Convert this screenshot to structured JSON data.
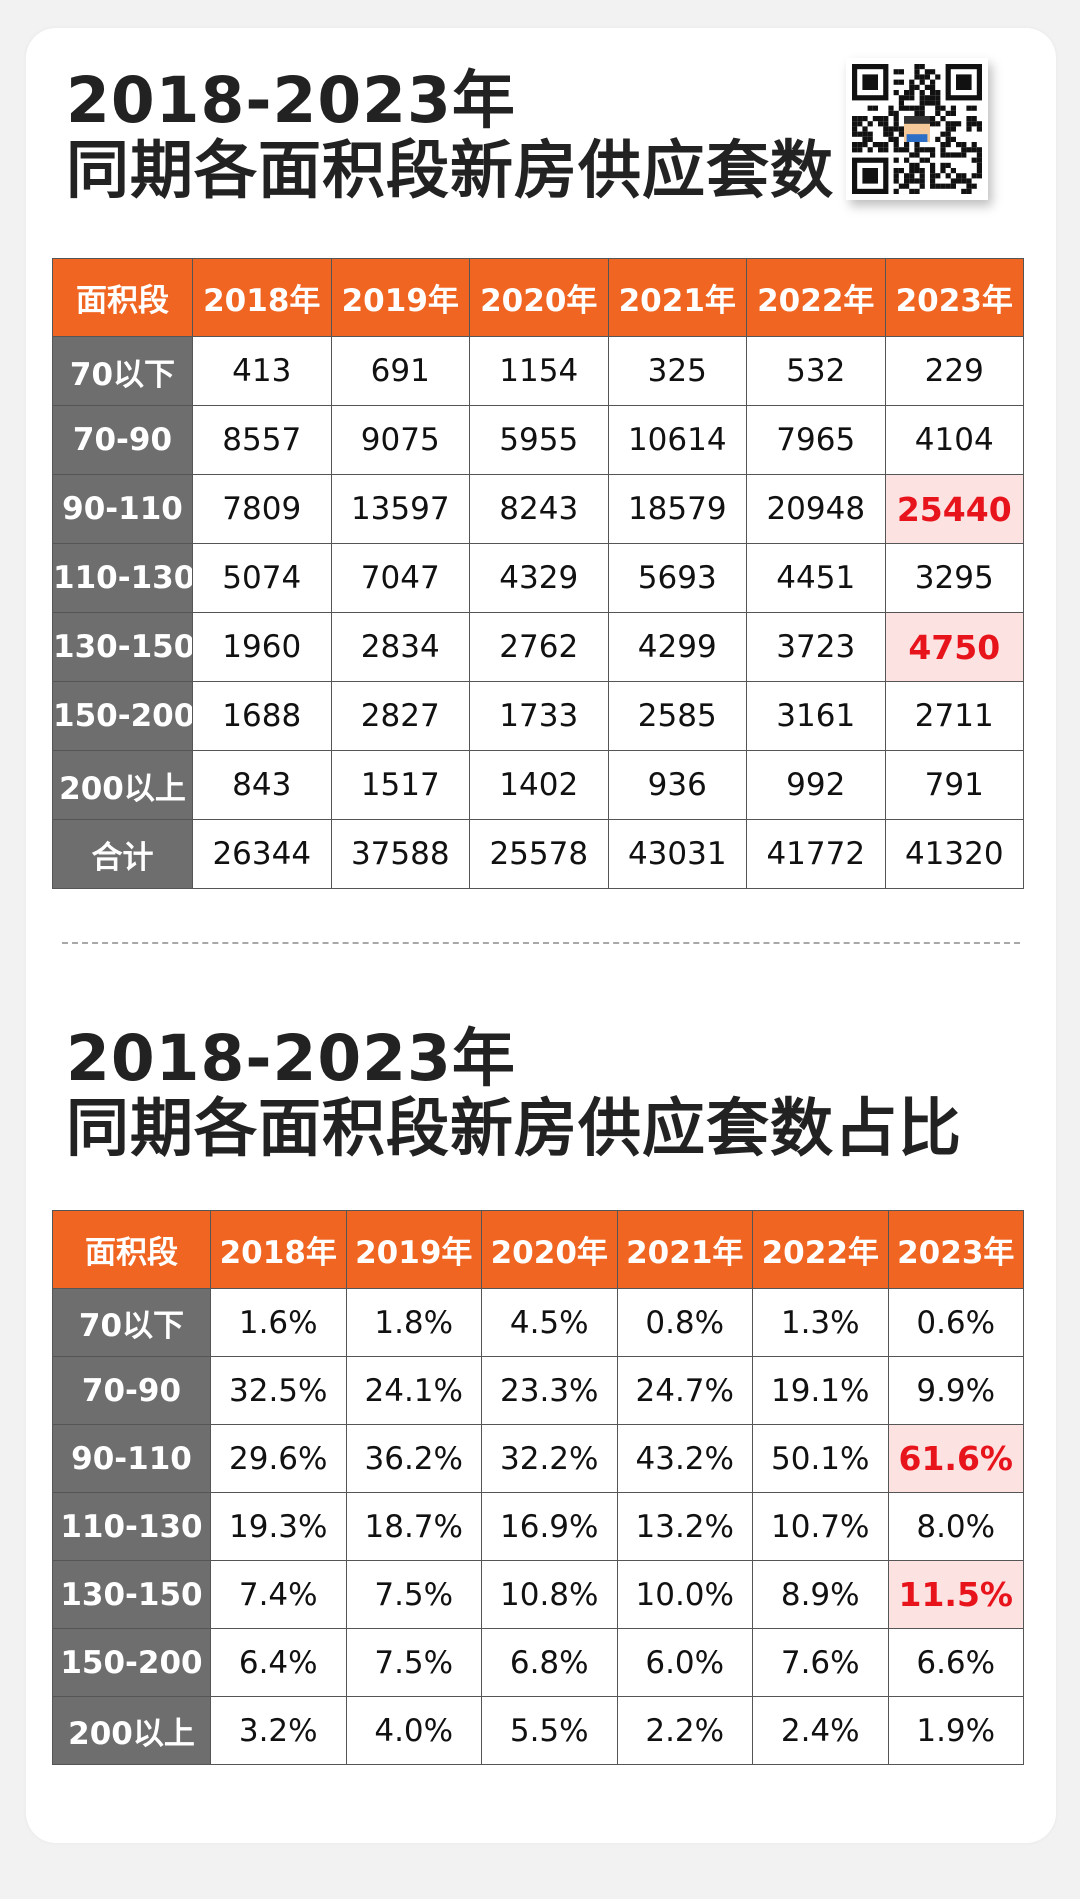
{
  "section1": {
    "title_line1": "2018-2023年",
    "title_line2": "同期各面积段新房供应套数"
  },
  "section2": {
    "title_line1": "2018-2023年",
    "title_line2": "同期各面积段新房供应套数占比"
  },
  "qr_code": {
    "icon": "qr-code-icon"
  },
  "colors": {
    "header_bg": "#f06522",
    "rowhead_bg": "#6e6e6e",
    "highlight_bg": "#fde2e2",
    "highlight_text": "#e8141c"
  },
  "chart_data": [
    {
      "type": "table",
      "title": "2018-2023年 同期各面积段新房供应套数",
      "columns": [
        "面积段",
        "2018年",
        "2019年",
        "2020年",
        "2021年",
        "2022年",
        "2023年"
      ],
      "rows": [
        {
          "label": "70以下",
          "values": [
            "413",
            "691",
            "1154",
            "325",
            "532",
            "229"
          ]
        },
        {
          "label": "70-90",
          "values": [
            "8557",
            "9075",
            "5955",
            "10614",
            "7965",
            "4104"
          ]
        },
        {
          "label": "90-110",
          "values": [
            "7809",
            "13597",
            "8243",
            "18579",
            "20948",
            "25440"
          ],
          "highlight": [
            5
          ]
        },
        {
          "label": "110-130",
          "values": [
            "5074",
            "7047",
            "4329",
            "5693",
            "4451",
            "3295"
          ]
        },
        {
          "label": "130-150",
          "values": [
            "1960",
            "2834",
            "2762",
            "4299",
            "3723",
            "4750"
          ],
          "highlight": [
            5
          ]
        },
        {
          "label": "150-200",
          "values": [
            "1688",
            "2827",
            "1733",
            "2585",
            "3161",
            "2711"
          ]
        },
        {
          "label": "200以上",
          "values": [
            "843",
            "1517",
            "1402",
            "936",
            "992",
            "791"
          ]
        },
        {
          "label": "合计",
          "values": [
            "26344",
            "37588",
            "25578",
            "43031",
            "41772",
            "41320"
          ]
        }
      ]
    },
    {
      "type": "table",
      "title": "2018-2023年 同期各面积段新房供应套数占比",
      "columns": [
        "面积段",
        "2018年",
        "2019年",
        "2020年",
        "2021年",
        "2022年",
        "2023年"
      ],
      "rows": [
        {
          "label": "70以下",
          "values": [
            "1.6%",
            "1.8%",
            "4.5%",
            "0.8%",
            "1.3%",
            "0.6%"
          ]
        },
        {
          "label": "70-90",
          "values": [
            "32.5%",
            "24.1%",
            "23.3%",
            "24.7%",
            "19.1%",
            "9.9%"
          ]
        },
        {
          "label": "90-110",
          "values": [
            "29.6%",
            "36.2%",
            "32.2%",
            "43.2%",
            "50.1%",
            "61.6%"
          ],
          "highlight": [
            5
          ]
        },
        {
          "label": "110-130",
          "values": [
            "19.3%",
            "18.7%",
            "16.9%",
            "13.2%",
            "10.7%",
            "8.0%"
          ]
        },
        {
          "label": "130-150",
          "values": [
            "7.4%",
            "7.5%",
            "10.8%",
            "10.0%",
            "8.9%",
            "11.5%"
          ],
          "highlight": [
            5
          ]
        },
        {
          "label": "150-200",
          "values": [
            "6.4%",
            "7.5%",
            "6.8%",
            "6.0%",
            "7.6%",
            "6.6%"
          ]
        },
        {
          "label": "200以上",
          "values": [
            "3.2%",
            "4.0%",
            "5.5%",
            "2.2%",
            "2.4%",
            "1.9%"
          ]
        }
      ]
    }
  ]
}
